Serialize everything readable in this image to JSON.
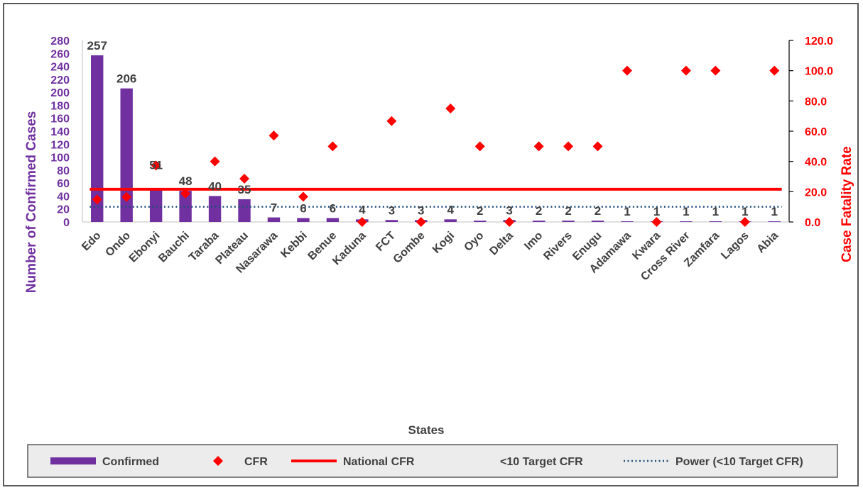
{
  "chart_data": {
    "type": "bar",
    "categories": [
      "Edo",
      "Ondo",
      "Ebonyi",
      "Bauchi",
      "Taraba",
      "Plateau",
      "Nasarawa",
      "Kebbi",
      "Benue",
      "Kaduna",
      "FCT",
      "Gombe",
      "Kogi",
      "Oyo",
      "Delta",
      "Imo",
      "Rivers",
      "Enugu",
      "Adamawa",
      "Kwara",
      "Cross River",
      "Zamfara",
      "Lagos",
      "Abia"
    ],
    "xlabel": "States",
    "ylabel": "Number of  Confirmed Cases",
    "y2label": "Case Fatality Rate",
    "ylim": [
      0,
      280
    ],
    "y_ticks": [
      "0",
      "20",
      "40",
      "60",
      "80",
      "100",
      "120",
      "140",
      "160",
      "180",
      "200",
      "220",
      "240",
      "260",
      "280"
    ],
    "y2lim": [
      0,
      120
    ],
    "y2_ticks": [
      "0.0",
      "20.0",
      "40.0",
      "60.0",
      "80.0",
      "100.0",
      "120.0"
    ],
    "series": [
      {
        "name": "Confirmed",
        "kind": "bar",
        "axis": "left",
        "color": "#7030A0",
        "values": [
          257,
          206,
          51,
          48,
          40,
          35,
          7,
          6,
          6,
          4,
          3,
          3,
          4,
          2,
          3,
          2,
          2,
          2,
          1,
          1,
          1,
          1,
          1,
          1
        ],
        "data_labels": [
          "257",
          "206",
          "51",
          "48",
          "40",
          "35",
          "7",
          "6",
          "6",
          "4",
          "3",
          "3",
          "4",
          "2",
          "3",
          "2",
          "2",
          "2",
          "1",
          "1",
          "1",
          "1",
          "1",
          "1"
        ]
      },
      {
        "name": "CFR",
        "kind": "scatter",
        "axis": "right",
        "color": "#FF0000",
        "values": [
          14.8,
          16.5,
          37.3,
          18.8,
          40.0,
          28.6,
          57.1,
          16.7,
          50.0,
          0,
          66.7,
          0,
          75.0,
          50.0,
          0,
          50.0,
          50.0,
          50.0,
          100,
          0,
          100,
          100,
          0,
          100
        ]
      },
      {
        "name": "National CFR",
        "kind": "line",
        "axis": "right",
        "color": "#FF0000",
        "value": 21.6
      },
      {
        "name": "<10 Target CFR",
        "kind": "line",
        "axis": "right",
        "color": "#1F4E79",
        "style": "dotted",
        "value": 10
      }
    ],
    "legend": {
      "placement": "bottom",
      "entries": [
        "Confirmed",
        "CFR",
        "National CFR",
        "<10 Target CFR",
        "Power (<10 Target CFR)"
      ]
    },
    "grid": false
  }
}
